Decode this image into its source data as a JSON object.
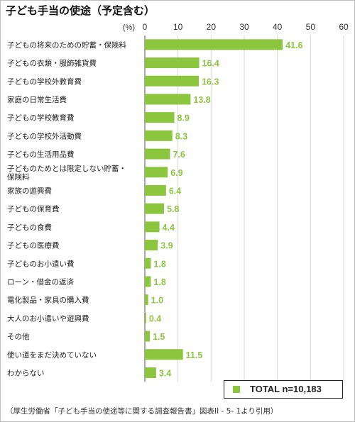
{
  "title": "子ども手当の使途（予定含む）",
  "source_note": "（厚生労働省「子ども手当の使途等に関する調査報告書」図表II - 5- 1より引用）",
  "colors": {
    "bar": "#8cc63f",
    "value_label": "#8cc63f",
    "grid": "#d9d9d9",
    "axis": "#555555"
  },
  "chart_data": {
    "type": "bar",
    "orientation": "horizontal",
    "title": "子ども手当の使途（予定含む）",
    "unit_label": "(%)",
    "xlim": [
      0,
      60
    ],
    "xticks": [
      0,
      10,
      20,
      30,
      40,
      50,
      60
    ],
    "grid": true,
    "legend": {
      "label": "TOTAL n=10,183",
      "placement": "bottom-right"
    },
    "categories": [
      [
        "子どもの将来のための貯蓄・保険料"
      ],
      [
        "子どもの衣類・服飾雑貨費"
      ],
      [
        "子どもの学校外教育費"
      ],
      [
        "家庭の日常生活費"
      ],
      [
        "子どもの学校教育費"
      ],
      [
        "子どもの学校外活動費"
      ],
      [
        "子どもの生活用品費"
      ],
      [
        "子どものためとは限定しない貯蓄・",
        "保険料"
      ],
      [
        "家族の遊興費"
      ],
      [
        "子どもの保育費"
      ],
      [
        "子どもの食費"
      ],
      [
        "子どもの医療費"
      ],
      [
        "子どものお小遣い費"
      ],
      [
        "ローン・借金の返済"
      ],
      [
        "電化製品・家具の購入費"
      ],
      [
        "大人のお小遣いや遊興費"
      ],
      [
        "その他"
      ],
      [
        "使い道をまだ決めていない"
      ],
      [
        "わからない"
      ]
    ],
    "values": [
      41.6,
      16.4,
      16.3,
      13.8,
      8.9,
      8.3,
      7.6,
      6.9,
      6.4,
      5.8,
      4.4,
      3.9,
      1.8,
      1.8,
      1.0,
      0.4,
      1.5,
      11.5,
      3.4
    ],
    "value_labels": [
      "41.6",
      "16.4",
      "16.3",
      "13.8",
      "8.9",
      "8.3",
      "7.6",
      "6.9",
      "6.4",
      "5.8",
      "4.4",
      "3.9",
      "1.8",
      "1.8",
      "1.0",
      "0.4",
      "1.5",
      "11.5",
      "3.4"
    ]
  }
}
